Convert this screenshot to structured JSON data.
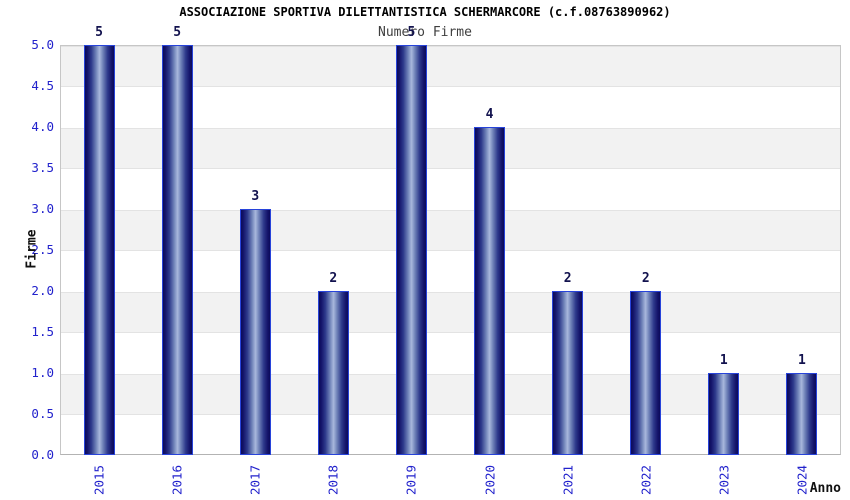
{
  "chart_data": {
    "type": "bar",
    "title": "ASSOCIAZIONE SPORTIVA DILETTANTISTICA SCHERMARCORE (c.f.08763890962)",
    "subtitle": "Numero Firme",
    "xlabel": "Anno",
    "ylabel": "Firme",
    "categories": [
      "2015",
      "2016",
      "2017",
      "2018",
      "2019",
      "2020",
      "2021",
      "2022",
      "2023",
      "2024"
    ],
    "values": [
      5,
      5,
      3,
      2,
      5,
      4,
      2,
      2,
      1,
      1
    ],
    "ylim": [
      0.0,
      5.0
    ],
    "ytick_step": 0.5,
    "yticks": [
      "0.0",
      "0.5",
      "1.0",
      "1.5",
      "2.0",
      "2.5",
      "3.0",
      "3.5",
      "4.0",
      "4.5",
      "5.0"
    ],
    "legend": "none",
    "grid": "alternating-horizontal-bands",
    "colors": {
      "tick_label": "#2222cc",
      "bar_value_label": "#12124e",
      "bar_edge": "#2743da",
      "bar_gradient_dark": "#0b0b5a",
      "bar_gradient_light": "#a9b8dd",
      "band_gray": "#f2f2f2",
      "plot_border": "#c6c6c6",
      "title": "#000000",
      "subtitle": "#3f3f3f",
      "axis_label": "#111111",
      "background": "#ffffff"
    }
  }
}
